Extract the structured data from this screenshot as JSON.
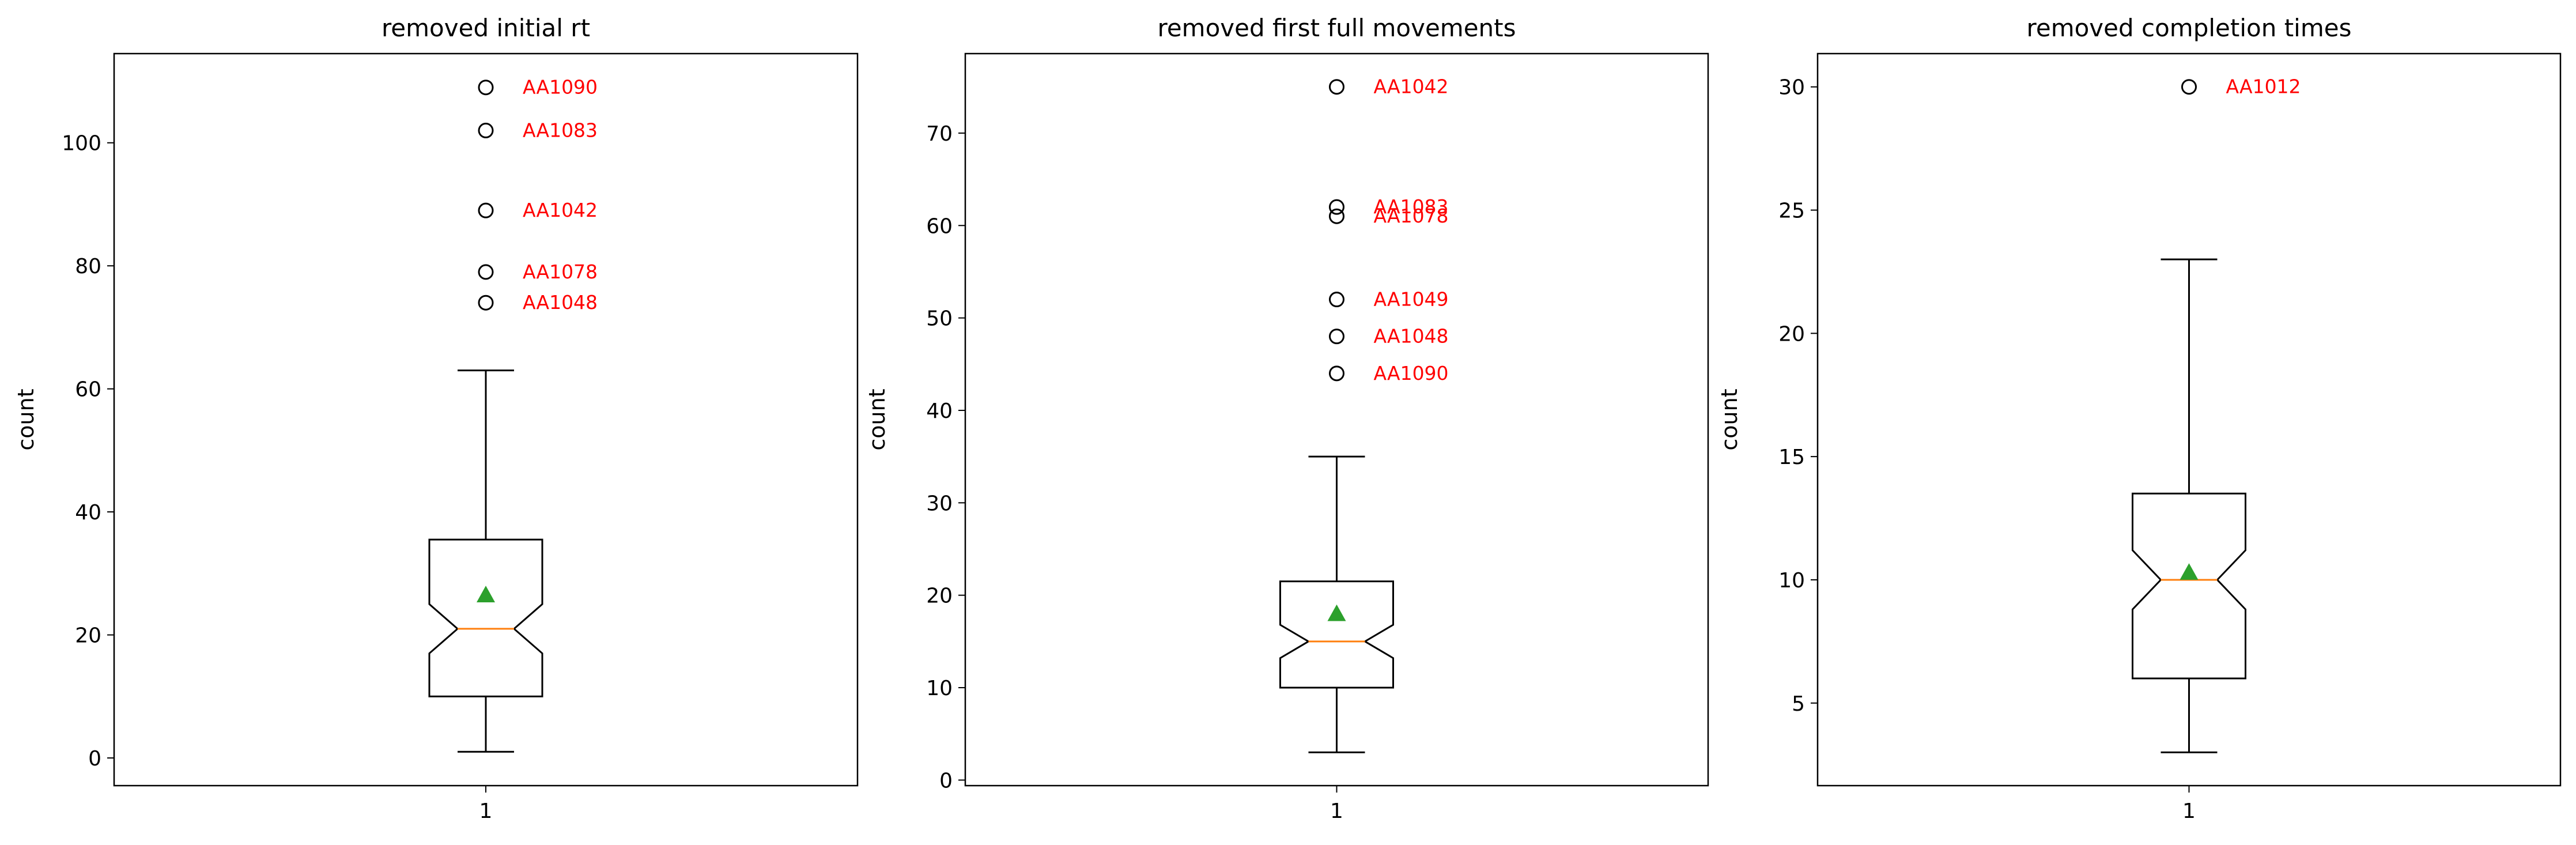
{
  "colors": {
    "box": "#000000",
    "median": "#ff7f0e",
    "mean": "#2ca02c",
    "outlier_label": "#ff0000",
    "background": "#ffffff"
  },
  "chart_data": [
    {
      "type": "boxplot",
      "title": "removed initial rt",
      "xlabel": "",
      "ylabel": "count",
      "categories": [
        "1"
      ],
      "ylim": [
        -4.5,
        114.5
      ],
      "yticks": [
        0,
        20,
        40,
        60,
        80,
        100
      ],
      "notched": true,
      "box": {
        "whisker_low": 1,
        "q1": 10,
        "notch_low": 17,
        "median": 21,
        "notch_high": 25,
        "q3": 35.5,
        "whisker_high": 63,
        "mean": 26.5
      },
      "outliers": [
        {
          "value": 109,
          "label": "AA1090"
        },
        {
          "value": 102,
          "label": "AA1083"
        },
        {
          "value": 89,
          "label": "AA1042"
        },
        {
          "value": 79,
          "label": "AA1078"
        },
        {
          "value": 74,
          "label": "AA1048"
        }
      ]
    },
    {
      "type": "boxplot",
      "title": "removed first full movements",
      "xlabel": "",
      "ylabel": "count",
      "categories": [
        "1"
      ],
      "ylim": [
        -0.6,
        78.6
      ],
      "yticks": [
        0,
        10,
        20,
        30,
        40,
        50,
        60,
        70
      ],
      "notched": true,
      "box": {
        "whisker_low": 3,
        "q1": 10,
        "notch_low": 13.2,
        "median": 15,
        "notch_high": 16.8,
        "q3": 21.5,
        "whisker_high": 35,
        "mean": 18
      },
      "outliers": [
        {
          "value": 75,
          "label": "AA1042"
        },
        {
          "value": 62,
          "label": "AA1083"
        },
        {
          "value": 61,
          "label": "AA1078"
        },
        {
          "value": 52,
          "label": "AA1049"
        },
        {
          "value": 48,
          "label": "AA1048"
        },
        {
          "value": 44,
          "label": "AA1090"
        }
      ]
    },
    {
      "type": "boxplot",
      "title": "removed completion times",
      "xlabel": "",
      "ylabel": "count",
      "categories": [
        "1"
      ],
      "ylim": [
        1.65,
        31.35
      ],
      "yticks": [
        5,
        10,
        15,
        20,
        25,
        30
      ],
      "notched": true,
      "box": {
        "whisker_low": 3,
        "q1": 6,
        "notch_low": 8.8,
        "median": 10,
        "notch_high": 11.2,
        "q3": 13.5,
        "whisker_high": 23,
        "mean": 10.3
      },
      "outliers": [
        {
          "value": 30,
          "label": "AA1012"
        }
      ]
    }
  ]
}
